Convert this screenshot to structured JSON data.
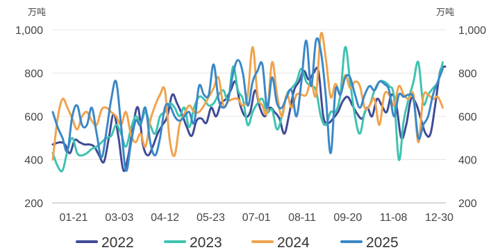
{
  "chart_data": {
    "type": "line",
    "units": {
      "left": "万吨",
      "right": "万吨"
    },
    "ylim": [
      200,
      1000
    ],
    "yticks": [
      "200",
      "400",
      "600",
      "800",
      "1,000"
    ],
    "x_tick_labels": [
      "01-21",
      "03-03",
      "04-12",
      "05-23",
      "07-01",
      "08-11",
      "09-20",
      "11-08",
      "12-30"
    ],
    "x_range_days": [
      0,
      370
    ],
    "grid": "horizontal",
    "legend_position": "bottom",
    "series": [
      {
        "name": "2022",
        "color": "#3f4b96",
        "values": [
          [
            0,
            470
          ],
          [
            6,
            480
          ],
          [
            10,
            470
          ],
          [
            14,
            430
          ],
          [
            18,
            490
          ],
          [
            22,
            480
          ],
          [
            26,
            470
          ],
          [
            30,
            470
          ],
          [
            34,
            460
          ],
          [
            38,
            420
          ],
          [
            42,
            390
          ],
          [
            46,
            500
          ],
          [
            50,
            610
          ],
          [
            54,
            500
          ],
          [
            58,
            350
          ],
          [
            62,
            420
          ],
          [
            66,
            560
          ],
          [
            70,
            640
          ],
          [
            74,
            470
          ],
          [
            78,
            420
          ],
          [
            82,
            460
          ],
          [
            86,
            520
          ],
          [
            90,
            560
          ],
          [
            94,
            600
          ],
          [
            98,
            700
          ],
          [
            102,
            660
          ],
          [
            106,
            610
          ],
          [
            110,
            550
          ],
          [
            114,
            510
          ],
          [
            118,
            580
          ],
          [
            122,
            590
          ],
          [
            126,
            570
          ],
          [
            130,
            640
          ],
          [
            134,
            600
          ],
          [
            138,
            660
          ],
          [
            142,
            680
          ],
          [
            146,
            720
          ],
          [
            150,
            760
          ],
          [
            154,
            650
          ],
          [
            158,
            600
          ],
          [
            162,
            620
          ],
          [
            166,
            720
          ],
          [
            170,
            640
          ],
          [
            174,
            600
          ],
          [
            178,
            640
          ],
          [
            182,
            620
          ],
          [
            186,
            590
          ],
          [
            190,
            520
          ],
          [
            194,
            610
          ],
          [
            198,
            720
          ],
          [
            202,
            760
          ],
          [
            206,
            810
          ],
          [
            210,
            770
          ],
          [
            214,
            800
          ],
          [
            218,
            810
          ],
          [
            222,
            600
          ],
          [
            226,
            570
          ],
          [
            230,
            590
          ],
          [
            234,
            620
          ],
          [
            238,
            670
          ],
          [
            242,
            690
          ],
          [
            246,
            650
          ],
          [
            250,
            610
          ],
          [
            254,
            590
          ],
          [
            258,
            640
          ],
          [
            262,
            600
          ],
          [
            266,
            680
          ],
          [
            270,
            650
          ],
          [
            274,
            620
          ],
          [
            278,
            700
          ],
          [
            282,
            650
          ],
          [
            286,
            500
          ],
          [
            290,
            560
          ],
          [
            294,
            680
          ],
          [
            298,
            660
          ],
          [
            302,
            590
          ],
          [
            306,
            520
          ],
          [
            310,
            520
          ],
          [
            314,
            660
          ],
          [
            318,
            810
          ],
          [
            322,
            830
          ]
        ]
      },
      {
        "name": "2023",
        "color": "#3ec3b0",
        "values": [
          [
            0,
            430
          ],
          [
            4,
            370
          ],
          [
            8,
            350
          ],
          [
            12,
            440
          ],
          [
            16,
            500
          ],
          [
            20,
            430
          ],
          [
            24,
            420
          ],
          [
            28,
            430
          ],
          [
            32,
            450
          ],
          [
            36,
            460
          ],
          [
            40,
            480
          ],
          [
            44,
            500
          ],
          [
            48,
            510
          ],
          [
            52,
            560
          ],
          [
            56,
            520
          ],
          [
            60,
            460
          ],
          [
            64,
            540
          ],
          [
            68,
            600
          ],
          [
            72,
            570
          ],
          [
            76,
            620
          ],
          [
            80,
            560
          ],
          [
            84,
            520
          ],
          [
            88,
            600
          ],
          [
            92,
            620
          ],
          [
            96,
            660
          ],
          [
            100,
            640
          ],
          [
            104,
            600
          ],
          [
            108,
            640
          ],
          [
            112,
            550
          ],
          [
            116,
            640
          ],
          [
            120,
            690
          ],
          [
            124,
            680
          ],
          [
            128,
            650
          ],
          [
            132,
            660
          ],
          [
            136,
            700
          ],
          [
            140,
            720
          ],
          [
            144,
            680
          ],
          [
            148,
            830
          ],
          [
            152,
            720
          ],
          [
            156,
            680
          ],
          [
            160,
            560
          ],
          [
            164,
            620
          ],
          [
            168,
            660
          ],
          [
            172,
            680
          ],
          [
            176,
            620
          ],
          [
            180,
            630
          ],
          [
            184,
            540
          ],
          [
            188,
            600
          ],
          [
            192,
            700
          ],
          [
            196,
            730
          ],
          [
            200,
            760
          ],
          [
            204,
            820
          ],
          [
            208,
            760
          ],
          [
            212,
            740
          ],
          [
            216,
            720
          ],
          [
            220,
            600
          ],
          [
            224,
            560
          ],
          [
            228,
            620
          ],
          [
            232,
            620
          ],
          [
            236,
            700
          ],
          [
            240,
            920
          ],
          [
            244,
            760
          ],
          [
            248,
            600
          ],
          [
            252,
            520
          ],
          [
            256,
            620
          ],
          [
            260,
            650
          ],
          [
            264,
            720
          ],
          [
            268,
            760
          ],
          [
            272,
            760
          ],
          [
            276,
            740
          ],
          [
            280,
            690
          ],
          [
            284,
            400
          ],
          [
            288,
            580
          ],
          [
            292,
            680
          ],
          [
            296,
            760
          ],
          [
            300,
            850
          ],
          [
            304,
            660
          ],
          [
            308,
            700
          ],
          [
            312,
            730
          ],
          [
            316,
            760
          ],
          [
            320,
            850
          ]
        ]
      },
      {
        "name": "2024",
        "color": "#f0a34c",
        "values": [
          [
            0,
            400
          ],
          [
            4,
            590
          ],
          [
            8,
            680
          ],
          [
            12,
            640
          ],
          [
            16,
            590
          ],
          [
            20,
            540
          ],
          [
            24,
            600
          ],
          [
            28,
            620
          ],
          [
            32,
            580
          ],
          [
            36,
            560
          ],
          [
            40,
            630
          ],
          [
            44,
            640
          ],
          [
            48,
            620
          ],
          [
            52,
            600
          ],
          [
            56,
            560
          ],
          [
            60,
            620
          ],
          [
            64,
            520
          ],
          [
            68,
            480
          ],
          [
            72,
            520
          ],
          [
            76,
            460
          ],
          [
            80,
            580
          ],
          [
            84,
            650
          ],
          [
            88,
            700
          ],
          [
            92,
            720
          ],
          [
            96,
            490
          ],
          [
            100,
            420
          ],
          [
            104,
            560
          ],
          [
            108,
            610
          ],
          [
            112,
            650
          ],
          [
            116,
            620
          ],
          [
            120,
            620
          ],
          [
            124,
            650
          ],
          [
            128,
            690
          ],
          [
            132,
            730
          ],
          [
            136,
            780
          ],
          [
            140,
            650
          ],
          [
            144,
            670
          ],
          [
            148,
            680
          ],
          [
            152,
            680
          ],
          [
            156,
            650
          ],
          [
            160,
            700
          ],
          [
            164,
            920
          ],
          [
            168,
            700
          ],
          [
            172,
            650
          ],
          [
            176,
            620
          ],
          [
            180,
            850
          ],
          [
            184,
            700
          ],
          [
            188,
            600
          ],
          [
            192,
            700
          ],
          [
            196,
            640
          ],
          [
            200,
            700
          ],
          [
            204,
            700
          ],
          [
            208,
            700
          ],
          [
            212,
            760
          ],
          [
            216,
            700
          ],
          [
            220,
            980
          ],
          [
            224,
            870
          ],
          [
            228,
            690
          ],
          [
            232,
            750
          ],
          [
            236,
            700
          ],
          [
            240,
            790
          ],
          [
            244,
            730
          ],
          [
            248,
            760
          ],
          [
            252,
            740
          ],
          [
            256,
            640
          ],
          [
            260,
            650
          ],
          [
            264,
            680
          ],
          [
            268,
            560
          ],
          [
            272,
            700
          ],
          [
            276,
            700
          ],
          [
            280,
            650
          ],
          [
            284,
            740
          ],
          [
            288,
            700
          ],
          [
            292,
            680
          ],
          [
            296,
            700
          ],
          [
            300,
            480
          ],
          [
            304,
            690
          ],
          [
            308,
            700
          ],
          [
            312,
            680
          ],
          [
            316,
            690
          ],
          [
            320,
            640
          ]
        ]
      },
      {
        "name": "2025",
        "color": "#3a88c8",
        "values": [
          [
            0,
            620
          ],
          [
            4,
            550
          ],
          [
            8,
            500
          ],
          [
            12,
            440
          ],
          [
            16,
            600
          ],
          [
            20,
            650
          ],
          [
            24,
            560
          ],
          [
            28,
            560
          ],
          [
            32,
            640
          ],
          [
            36,
            520
          ],
          [
            40,
            410
          ],
          [
            44,
            530
          ],
          [
            48,
            680
          ],
          [
            52,
            760
          ],
          [
            56,
            560
          ],
          [
            60,
            350
          ],
          [
            64,
            470
          ],
          [
            68,
            580
          ],
          [
            72,
            560
          ],
          [
            76,
            640
          ],
          [
            80,
            480
          ],
          [
            84,
            420
          ],
          [
            88,
            500
          ],
          [
            92,
            640
          ],
          [
            96,
            650
          ],
          [
            100,
            600
          ],
          [
            104,
            580
          ],
          [
            108,
            600
          ],
          [
            112,
            620
          ],
          [
            116,
            570
          ],
          [
            120,
            740
          ],
          [
            124,
            700
          ],
          [
            128,
            700
          ],
          [
            132,
            840
          ],
          [
            136,
            680
          ],
          [
            140,
            640
          ],
          [
            144,
            680
          ],
          [
            148,
            800
          ],
          [
            152,
            860
          ],
          [
            156,
            800
          ],
          [
            160,
            650
          ],
          [
            164,
            760
          ],
          [
            168,
            810
          ],
          [
            172,
            840
          ],
          [
            176,
            640
          ],
          [
            180,
            780
          ],
          [
            184,
            660
          ],
          [
            188,
            640
          ],
          [
            192,
            690
          ],
          [
            196,
            720
          ],
          [
            200,
            600
          ],
          [
            204,
            760
          ],
          [
            208,
            950
          ],
          [
            212,
            740
          ],
          [
            216,
            950
          ],
          [
            220,
            900
          ],
          [
            224,
            700
          ],
          [
            228,
            430
          ],
          [
            232,
            720
          ],
          [
            236,
            700
          ],
          [
            240,
            780
          ],
          [
            244,
            780
          ],
          [
            248,
            700
          ],
          [
            252,
            640
          ],
          [
            256,
            700
          ],
          [
            260,
            740
          ],
          [
            264,
            720
          ],
          [
            268,
            760
          ],
          [
            272,
            750
          ],
          [
            276,
            720
          ],
          [
            280,
            600
          ],
          [
            284,
            700
          ],
          [
            288,
            690
          ],
          [
            292,
            700
          ],
          [
            296,
            680
          ],
          [
            300,
            500
          ],
          [
            304,
            560
          ],
          [
            308,
            600
          ],
          [
            312,
            700
          ],
          [
            316,
            760
          ],
          [
            320,
            820
          ]
        ]
      }
    ]
  }
}
